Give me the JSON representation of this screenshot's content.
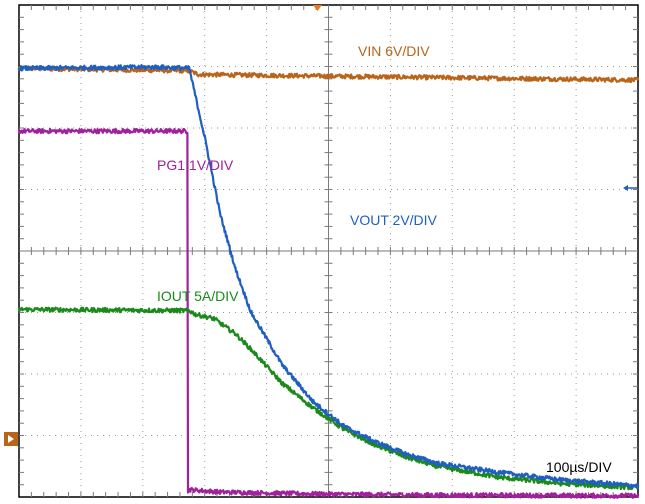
{
  "chart_data": {
    "type": "line",
    "title": "",
    "xlabel": "",
    "ylabel": "",
    "timebase_label": "100µs/DIV",
    "x_unit": "µs",
    "x_range": [
      -275,
      725
    ],
    "y_range_div": [
      -4,
      4
    ],
    "grid": true,
    "series": [
      {
        "name": "VIN 6V/DIV",
        "label": "VIN 6V/DIV",
        "color": "#b8651b",
        "x": [
          -275,
          0,
          15,
          725
        ],
        "y": [
          2.97,
          2.93,
          2.87,
          2.78
        ]
      },
      {
        "name": "VOUT 2V/DIV",
        "label": "VOUT 2V/DIV",
        "color": "#1f5fbf",
        "x": [
          -275,
          -50,
          0,
          25,
          50,
          75,
          100,
          150,
          200,
          250,
          300,
          350,
          400,
          500,
          600,
          725
        ],
        "y": [
          2.97,
          2.99,
          2.97,
          1.85,
          0.6,
          -0.3,
          -1.0,
          -1.85,
          -2.45,
          -2.85,
          -3.1,
          -3.3,
          -3.45,
          -3.6,
          -3.72,
          -3.82
        ]
      },
      {
        "name": "PG1 1V/DIV",
        "label": "PG1 1V/DIV",
        "color": "#a0219b",
        "x": [
          -275,
          -3,
          -2,
          0,
          50,
          200,
          400,
          725
        ],
        "y": [
          1.95,
          1.95,
          -3.9,
          -3.88,
          -3.92,
          -3.95,
          -3.97,
          -3.98
        ]
      },
      {
        "name": "IOUT 5A/DIV",
        "label": "IOUT 5A/DIV",
        "color": "#1b8a1b",
        "x": [
          -275,
          0,
          10,
          40,
          75,
          100,
          150,
          200,
          250,
          300,
          350,
          400,
          500,
          600,
          725
        ],
        "y": [
          -0.95,
          -0.97,
          -1.03,
          -1.1,
          -1.35,
          -1.6,
          -2.15,
          -2.55,
          -2.9,
          -3.15,
          -3.35,
          -3.5,
          -3.68,
          -3.78,
          -3.85
        ]
      }
    ]
  }
}
